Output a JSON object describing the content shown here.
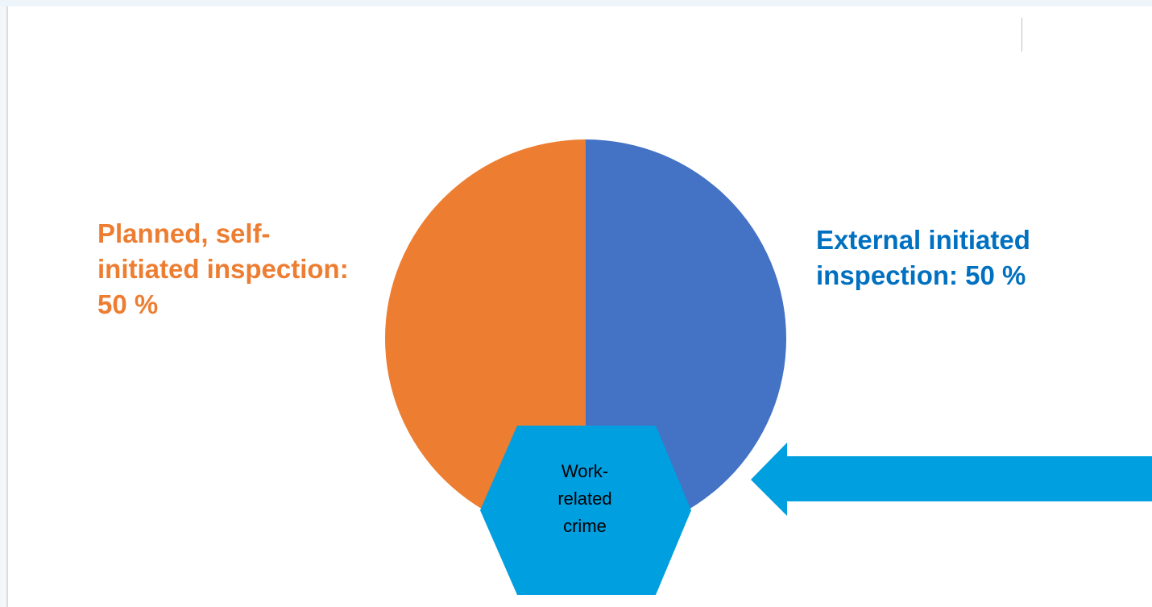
{
  "chart_data": {
    "type": "pie",
    "title": "",
    "slices": [
      {
        "label": "External initiated inspection: 50 %",
        "value": 50,
        "color": "#4472c4"
      },
      {
        "label": "Planned, self-initiated inspection: 50 %",
        "value": 50,
        "color": "#ed7d31"
      }
    ],
    "labels": {
      "left": "Planned, self-initiated inspection: 50 %",
      "right": "External initiated inspection: 50 %"
    },
    "center_shape": {
      "label_lines": [
        "Work-",
        "related",
        "crime"
      ],
      "color": "#009fe0"
    },
    "arrow": {
      "color": "#009fe0",
      "direction": "left"
    }
  }
}
